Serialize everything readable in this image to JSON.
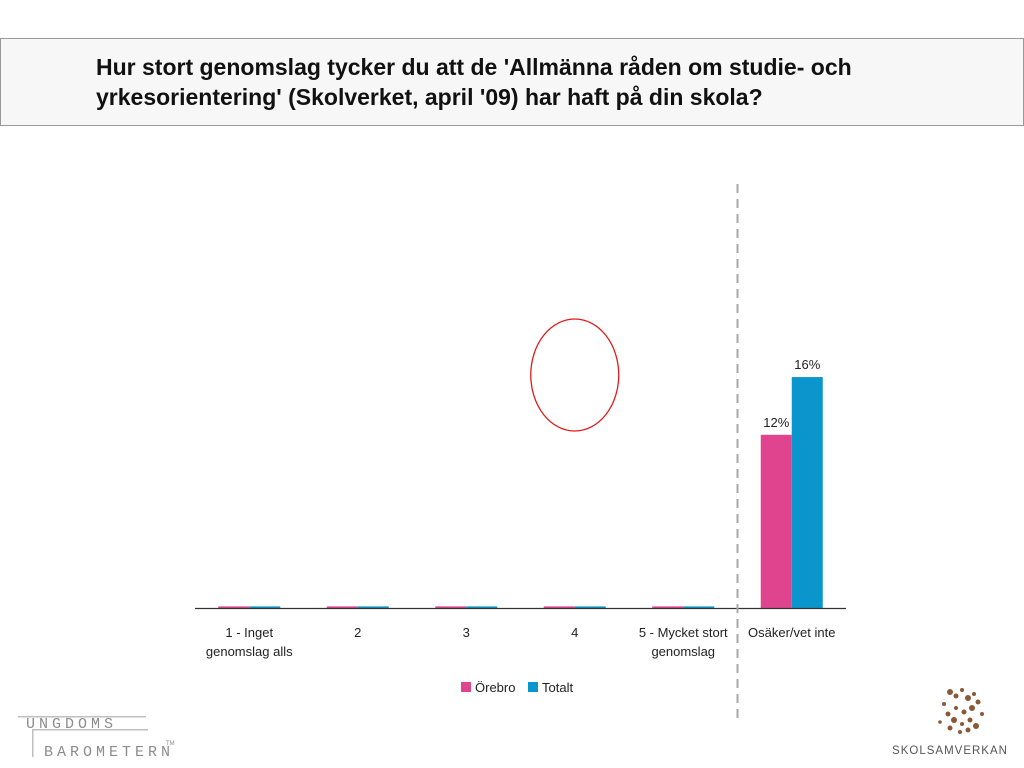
{
  "title": "Hur stort genomslag tycker du att de 'Allmänna råden om studie- och yrkesorientering' (Skolverket, april '09) har haft på din skola?",
  "chart_data": {
    "type": "bar",
    "categories": [
      [
        "1 - Inget",
        "genomslag alls"
      ],
      [
        "2"
      ],
      [
        "3"
      ],
      [
        "4"
      ],
      [
        "5 - Mycket stort",
        "genomslag"
      ],
      [
        "Osäker/vet inte"
      ]
    ],
    "series": [
      {
        "name": "Örebro",
        "color": "#e0448e",
        "values": [
          0,
          0,
          0,
          0,
          0,
          12
        ],
        "labels": [
          "",
          "",
          "",
          "",
          "",
          "12%"
        ]
      },
      {
        "name": "Totalt",
        "color": "#0a96cc",
        "values": [
          0,
          0,
          0,
          0,
          0,
          16
        ],
        "labels": [
          "",
          "",
          "",
          "",
          "",
          "16%"
        ]
      }
    ],
    "value_unit": "%",
    "ylim": [
      0,
      30
    ],
    "legend_position": "bottom",
    "separator_before_category": 5,
    "annotation": "red-circle-around-category-4"
  },
  "logos": {
    "left_line1": "UNGDOMS",
    "left_line2": "BAROMETERN",
    "left_tm": "TM",
    "right": "SKOLSAMVERKAN"
  }
}
